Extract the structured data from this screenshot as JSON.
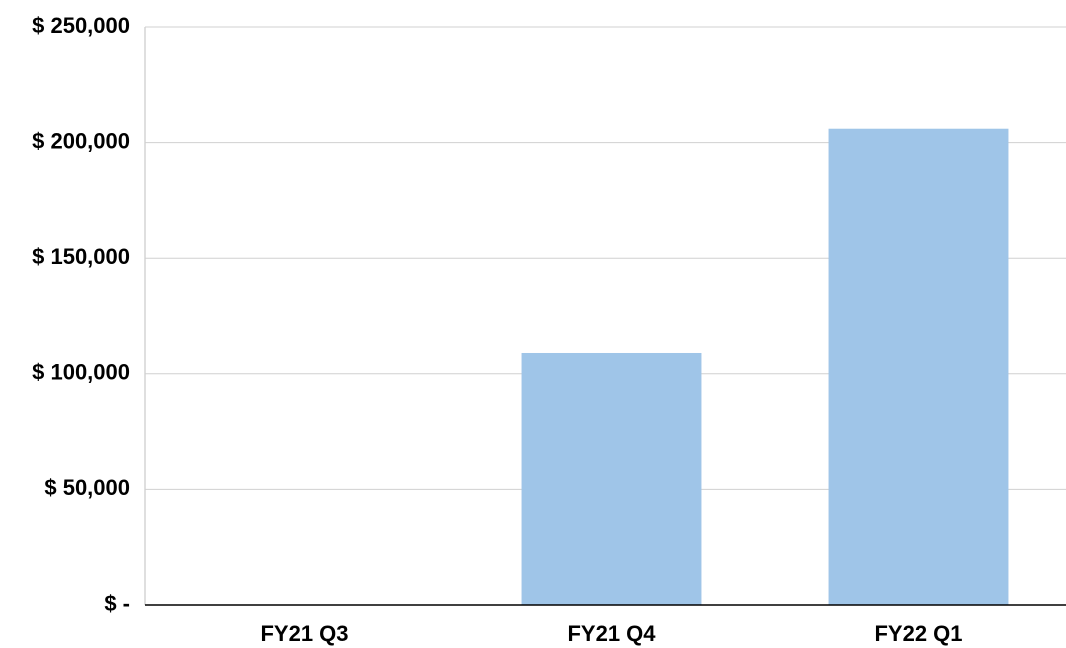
{
  "chart_data": {
    "type": "bar",
    "categories": [
      "FY21 Q3",
      "FY21 Q4",
      "FY22 Q1"
    ],
    "values": [
      0,
      109000,
      206000
    ],
    "color": "#9fc5e8",
    "ylim": [
      0,
      250000
    ],
    "yticks": [
      {
        "value": 0,
        "label": "$ -"
      },
      {
        "value": 50000,
        "label": "$ 50,000"
      },
      {
        "value": 100000,
        "label": "$ 100,000"
      },
      {
        "value": 150000,
        "label": "$ 150,000"
      },
      {
        "value": 200000,
        "label": "$ 200,000"
      },
      {
        "value": 250000,
        "label": "$ 250,000"
      }
    ],
    "grid": true
  }
}
